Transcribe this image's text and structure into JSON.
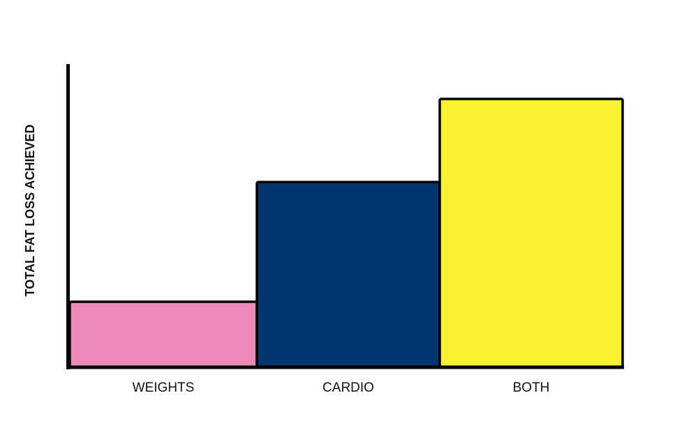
{
  "chart_data": {
    "type": "bar",
    "title": "",
    "xlabel": "",
    "ylabel": "TOTAL FAT LOSS ACHIEVED",
    "categories": [
      "WEIGHTS",
      "CARDIO",
      "BOTH"
    ],
    "values": [
      21.6,
      61.1,
      88.5
    ],
    "ylim": [
      0,
      100
    ],
    "y_ticks_shown": false,
    "grid": false,
    "colors": [
      "#ee8ab9",
      "#003570",
      "#f9f232"
    ],
    "bar_outline_color": "#000000"
  }
}
